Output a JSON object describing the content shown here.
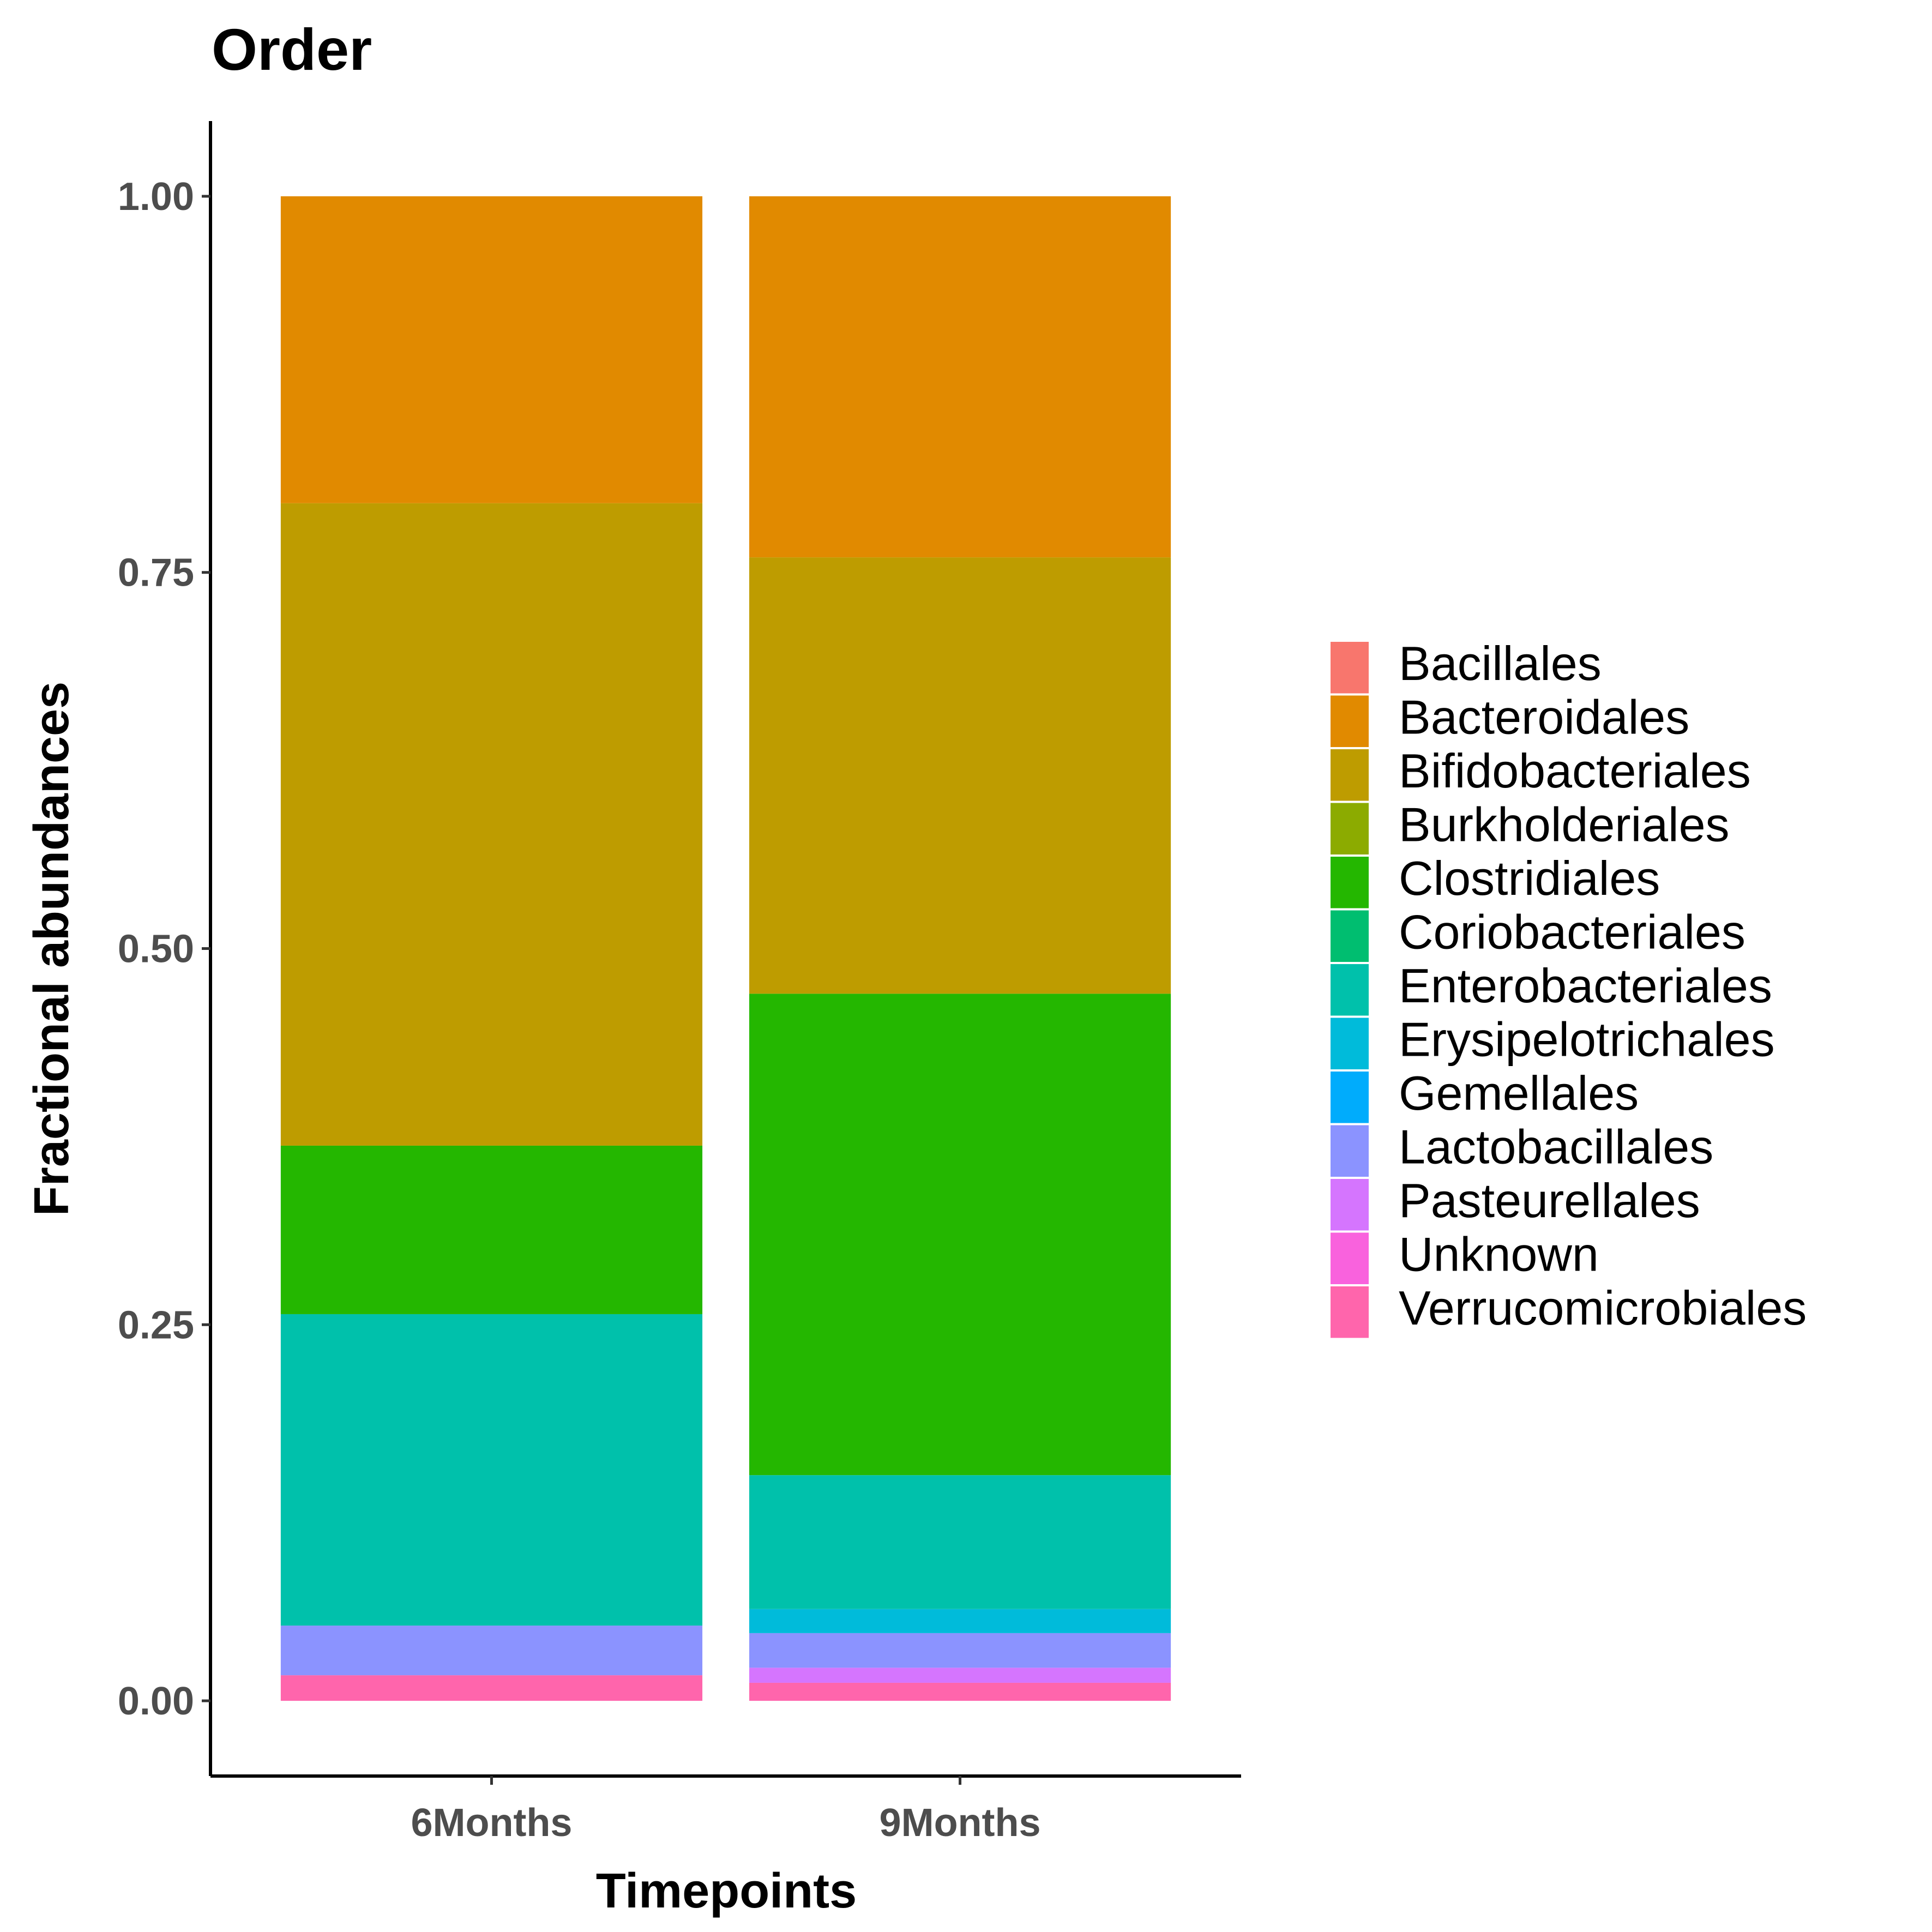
{
  "chart_data": {
    "type": "bar",
    "stacked": true,
    "title": "Order",
    "xlabel": "Timepoints",
    "ylabel": "Fractional abundances",
    "categories": [
      "6Months",
      "9Months"
    ],
    "ylim": [
      -0.05,
      1.05
    ],
    "yticks": [
      "0.00",
      "0.25",
      "0.50",
      "0.75",
      "1.00"
    ],
    "legend_position": "right",
    "grid": false,
    "series": [
      {
        "name": "Bacillales",
        "color": "#F8766D",
        "values": [
          0.0,
          0.0
        ]
      },
      {
        "name": "Bacteroidales",
        "color": "#E18A00",
        "values": [
          0.204,
          0.24
        ]
      },
      {
        "name": "Bifidobacteriales",
        "color": "#BE9C00",
        "values": [
          0.427,
          0.29
        ]
      },
      {
        "name": "Burkholderiales",
        "color": "#8CAB00",
        "values": [
          0.0,
          0.0
        ]
      },
      {
        "name": "Clostridiales",
        "color": "#24B700",
        "values": [
          0.112,
          0.32
        ]
      },
      {
        "name": "Coriobacteriales",
        "color": "#00BE70",
        "values": [
          0.0,
          0.0
        ]
      },
      {
        "name": "Enterobacteriales",
        "color": "#00C1AB",
        "values": [
          0.207,
          0.089
        ]
      },
      {
        "name": "Erysipelotrichales",
        "color": "#00BBDA",
        "values": [
          0.0,
          0.016
        ]
      },
      {
        "name": "Gemellales",
        "color": "#00ACFC",
        "values": [
          0.0,
          0.0
        ]
      },
      {
        "name": "Lactobacillales",
        "color": "#8B93FF",
        "values": [
          0.033,
          0.023
        ]
      },
      {
        "name": "Pasteurellales",
        "color": "#D575FE",
        "values": [
          0.0,
          0.01
        ]
      },
      {
        "name": "Unknown",
        "color": "#F962DD",
        "values": [
          0.0,
          0.0
        ]
      },
      {
        "name": "Verrucomicrobiales",
        "color": "#FF65AC",
        "values": [
          0.017,
          0.012
        ]
      }
    ]
  }
}
